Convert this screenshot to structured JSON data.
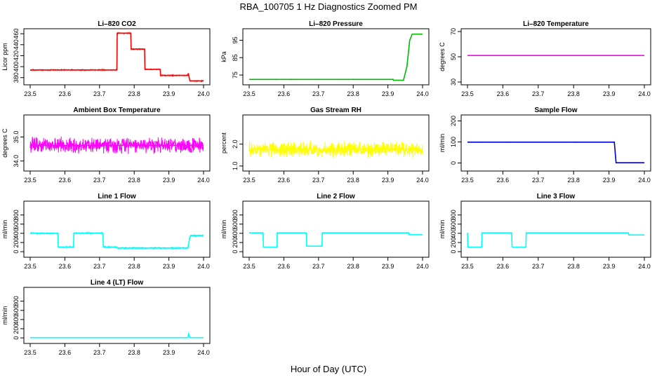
{
  "page": {
    "title": "RBA_100705  1 Hz Diagnostics Zoomed PM",
    "xlabel": "Hour of Day (UTC)"
  },
  "chart_data": [
    {
      "type": "line",
      "title": "Li–820 CO2",
      "ylabel": "Licor ppm",
      "color": "#ff0000",
      "xlim": [
        23.5,
        24.0
      ],
      "ylim": [
        372,
        464
      ],
      "xticks": [
        "23.5",
        "23.6",
        "23.7",
        "23.8",
        "23.9",
        "24.0"
      ],
      "yticks": [
        "380",
        "400",
        "420",
        "440",
        "460"
      ],
      "series": [
        {
          "noise": 1.2,
          "x": [
            23.5,
            23.75,
            23.751,
            23.79,
            23.791,
            23.83,
            23.831,
            23.875,
            23.876,
            23.955,
            23.956,
            23.96,
            23.961,
            24.0
          ],
          "y": [
            394,
            394,
            461,
            461,
            432,
            432,
            395,
            395,
            384,
            384,
            388,
            376,
            374,
            374
          ]
        }
      ]
    },
    {
      "type": "line",
      "title": "Li–820 Pressure",
      "ylabel": "kPa",
      "color": "#00bb00",
      "xlim": [
        23.5,
        24.0
      ],
      "ylim": [
        71,
        100
      ],
      "xticks": [
        "23.5",
        "23.6",
        "23.7",
        "23.8",
        "23.9",
        "24.0"
      ],
      "yticks": [
        "75",
        "85",
        "95"
      ],
      "series": [
        {
          "noise": 0.15,
          "x": [
            23.5,
            23.915,
            23.916,
            23.945,
            23.955,
            23.963,
            23.97,
            24.0
          ],
          "y": [
            72.5,
            72.5,
            72.0,
            72.0,
            80,
            95,
            98.5,
            98.5
          ]
        }
      ]
    },
    {
      "type": "line",
      "title": "Li–820 Temperature",
      "ylabel": "degrees C",
      "color": "#ff00ff",
      "xlim": [
        23.5,
        24.0
      ],
      "ylim": [
        30,
        70
      ],
      "xticks": [
        "23.5",
        "23.6",
        "23.7",
        "23.8",
        "23.9",
        "24.0"
      ],
      "yticks": [
        "30",
        "50",
        "70"
      ],
      "series": [
        {
          "noise": 0,
          "x": [
            23.5,
            24.0
          ],
          "y": [
            51,
            51
          ]
        }
      ]
    },
    {
      "type": "line",
      "title": "Ambient Box Temperature",
      "ylabel": "degrees C",
      "color": "#ff00ff",
      "xlim": [
        23.5,
        24.0
      ],
      "ylim": [
        33.7,
        35.8
      ],
      "xticks": [
        "23.5",
        "23.6",
        "23.7",
        "23.8",
        "23.9",
        "24.0"
      ],
      "yticks": [
        "34.0",
        "35.0"
      ],
      "series": [
        {
          "noise": 0.38,
          "x": [
            23.5,
            24.0
          ],
          "y": [
            34.65,
            34.65
          ]
        }
      ]
    },
    {
      "type": "line",
      "title": "Gas Stream RH",
      "ylabel": "percent",
      "color": "#ffff00",
      "xlim": [
        23.5,
        24.0
      ],
      "ylim": [
        0.9,
        3.2
      ],
      "xticks": [
        "23.5",
        "23.6",
        "23.7",
        "23.8",
        "23.9",
        "24.0"
      ],
      "yticks": [
        "1.0",
        "2.0"
      ],
      "series": [
        {
          "noise": 0.42,
          "x": [
            23.5,
            24.0
          ],
          "y": [
            1.75,
            1.75
          ]
        }
      ]
    },
    {
      "type": "line",
      "title": "Sample Flow",
      "ylabel": "ml/min",
      "color": "#0000cc",
      "xlim": [
        23.5,
        24.0
      ],
      "ylim": [
        -25,
        215
      ],
      "xticks": [
        "23.5",
        "23.6",
        "23.7",
        "23.8",
        "23.9",
        "24.0"
      ],
      "yticks": [
        "0",
        "100",
        "200"
      ],
      "series": [
        {
          "noise": 1.0,
          "x": [
            23.5,
            23.915,
            23.92,
            24.0
          ],
          "y": [
            99,
            99,
            1,
            1
          ]
        }
      ]
    },
    {
      "type": "line",
      "title": "Line 1 Flow",
      "ylabel": "ml/min",
      "color": "#00ffff",
      "xlim": [
        23.5,
        24.0
      ],
      "ylim": [
        -60,
        1040
      ],
      "xticks": [
        "23.5",
        "23.6",
        "23.7",
        "23.8",
        "23.9",
        "24.0"
      ],
      "yticks": [
        "0",
        "200",
        "400",
        "600",
        "800"
      ],
      "series": [
        {
          "noise": 20,
          "x": [
            23.5,
            23.58,
            23.581,
            23.625,
            23.626,
            23.71,
            23.711,
            23.75,
            23.751,
            23.955,
            23.96,
            23.963,
            24.0
          ],
          "y": [
            400,
            400,
            100,
            100,
            405,
            405,
            100,
            100,
            80,
            80,
            300,
            350,
            350
          ]
        }
      ]
    },
    {
      "type": "line",
      "title": "Line 2 Flow",
      "ylabel": "ml/min",
      "color": "#00ffff",
      "xlim": [
        23.5,
        24.0
      ],
      "ylim": [
        -60,
        1040
      ],
      "xticks": [
        "23.5",
        "23.6",
        "23.7",
        "23.8",
        "23.9",
        "24.0"
      ],
      "yticks": [
        "0",
        "200",
        "400",
        "600",
        "800"
      ],
      "series": [
        {
          "noise": 6,
          "x": [
            23.5,
            23.54,
            23.541,
            23.58,
            23.581,
            23.665,
            23.666,
            23.71,
            23.711,
            23.96,
            23.961,
            24.0
          ],
          "y": [
            410,
            410,
            100,
            100,
            410,
            410,
            120,
            120,
            410,
            410,
            370,
            370
          ]
        }
      ]
    },
    {
      "type": "line",
      "title": "Line 3 Flow",
      "ylabel": "ml/min",
      "color": "#00ffff",
      "xlim": [
        23.5,
        24.0
      ],
      "ylim": [
        -60,
        1040
      ],
      "xticks": [
        "23.5",
        "23.6",
        "23.7",
        "23.8",
        "23.9",
        "24.0"
      ],
      "yticks": [
        "0",
        "200",
        "400",
        "600",
        "800"
      ],
      "series": [
        {
          "noise": 5,
          "x": [
            23.5,
            23.501,
            23.54,
            23.541,
            23.625,
            23.626,
            23.665,
            23.666,
            23.955,
            23.956,
            24.0
          ],
          "y": [
            410,
            100,
            100,
            410,
            410,
            100,
            100,
            410,
            410,
            365,
            365
          ]
        }
      ]
    },
    {
      "type": "line",
      "title": "Line 4 (LT) Flow",
      "ylabel": "ml/min",
      "color": "#00ffff",
      "xlim": [
        23.5,
        24.0
      ],
      "ylim": [
        -60,
        1040
      ],
      "xticks": [
        "23.5",
        "23.6",
        "23.7",
        "23.8",
        "23.9",
        "24.0"
      ],
      "yticks": [
        "0",
        "200",
        "400",
        "600",
        "800"
      ],
      "series": [
        {
          "noise": 2,
          "x": [
            23.5,
            23.955,
            23.957,
            23.959,
            23.961,
            24.0
          ],
          "y": [
            5,
            5,
            100,
            40,
            5,
            5
          ]
        }
      ]
    }
  ]
}
